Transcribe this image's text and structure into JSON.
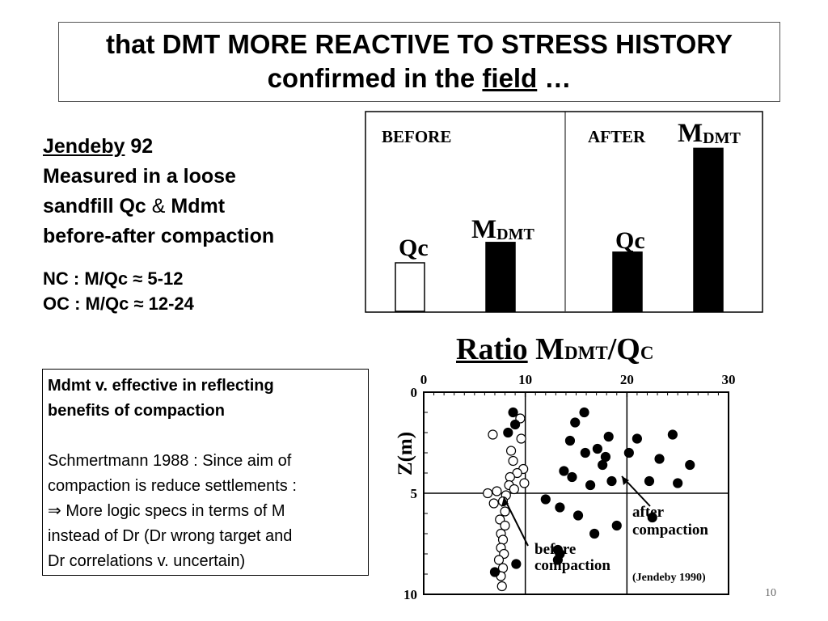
{
  "title": {
    "line1": "that DMT MORE REACTIVE TO STRESS HISTORY",
    "line2_pre": "confirmed in the ",
    "line2_link": "field",
    "line2_post": " …"
  },
  "left": {
    "author": "Jendeby",
    "year": " 92",
    "line2": "Measured in a loose",
    "line3_pre": "sandfill Qc ",
    "line3_amp": "&",
    "line3_post": " Mdmt",
    "line4": "before-after compaction",
    "nc": "NC : M/Qc ≈ 5-12",
    "oc": "OC : M/Qc ≈ 12-24"
  },
  "note": {
    "heading1": "Mdmt v. effective in reflecting",
    "heading2": "benefits of compaction",
    "line1": "Schmertmann 1988 : Since aim of",
    "line2": "compaction is reduce settlements :",
    "line3": "⇒ More logic specs in terms of M",
    "line4": "instead of Dr (Dr wrong target and",
    "line5": "Dr correlations v. uncertain)"
  },
  "bar_chart": {
    "before_label": "BEFORE",
    "after_label": "AFTER",
    "qc_label": "Qc",
    "m_main": "M",
    "m_sub": "DMT"
  },
  "ratio_heading": {
    "word": "Ratio",
    "m": "M",
    "m_sub": "DMT",
    "slash": "/Q",
    "q_sub": "C"
  },
  "scatter": {
    "ylabel": "Z(m)",
    "x_ticks": [
      "0",
      "10",
      "20",
      "30"
    ],
    "y_ticks": [
      "0",
      "5",
      "10"
    ],
    "before_label_1": "before",
    "before_label_2": "compaction",
    "after_label_1": "after",
    "after_label_2": "compaction",
    "credit": "(Jendeby 1990)"
  },
  "page_number": "10",
  "chart_data": [
    {
      "type": "bar",
      "categories": [
        "BEFORE Qc",
        "BEFORE MDMT",
        "AFTER Qc",
        "AFTER MDMT"
      ],
      "values": [
        1.0,
        1.42,
        1.22,
        3.36
      ],
      "fills": [
        "#ffffff",
        "#000000",
        "#000000",
        "#000000"
      ],
      "title": "",
      "xlabel": "",
      "ylabel": "",
      "ylim": [
        0,
        3.6
      ],
      "grid": false
    },
    {
      "type": "scatter",
      "title": "",
      "xlabel": "",
      "ylabel": "Z(m)",
      "xlim": [
        0,
        30
      ],
      "ylim": [
        10,
        0
      ],
      "x_ticks": [
        0,
        10,
        20,
        30
      ],
      "y_ticks": [
        0,
        5,
        10
      ],
      "grid": true,
      "series": [
        {
          "name": "before compaction",
          "marker": "open",
          "points": [
            [
              9.5,
              1.3
            ],
            [
              6.8,
              2.1
            ],
            [
              9.6,
              2.3
            ],
            [
              8.6,
              2.9
            ],
            [
              8.8,
              3.4
            ],
            [
              9.8,
              3.8
            ],
            [
              9.2,
              4.0
            ],
            [
              8.5,
              4.2
            ],
            [
              9.9,
              4.5
            ],
            [
              8.4,
              4.6
            ],
            [
              8.9,
              4.8
            ],
            [
              7.2,
              4.9
            ],
            [
              6.3,
              5.0
            ],
            [
              8.1,
              5.1
            ],
            [
              7.8,
              5.4
            ],
            [
              6.9,
              5.5
            ],
            [
              8.0,
              5.9
            ],
            [
              7.5,
              6.3
            ],
            [
              8.0,
              6.6
            ],
            [
              7.6,
              7.0
            ],
            [
              7.8,
              7.3
            ],
            [
              7.6,
              7.7
            ],
            [
              7.9,
              8.0
            ],
            [
              7.4,
              8.3
            ],
            [
              7.8,
              8.7
            ],
            [
              7.6,
              9.1
            ],
            [
              7.7,
              9.6
            ]
          ]
        },
        {
          "name": "after compaction",
          "marker": "filled",
          "points": [
            [
              8.8,
              1.0
            ],
            [
              15.8,
              1.0
            ],
            [
              9.0,
              1.6
            ],
            [
              14.9,
              1.5
            ],
            [
              8.3,
              2.0
            ],
            [
              14.4,
              2.4
            ],
            [
              18.2,
              2.2
            ],
            [
              21.0,
              2.3
            ],
            [
              24.5,
              2.1
            ],
            [
              15.9,
              3.0
            ],
            [
              17.1,
              2.8
            ],
            [
              17.9,
              3.2
            ],
            [
              20.2,
              3.0
            ],
            [
              17.6,
              3.6
            ],
            [
              23.2,
              3.3
            ],
            [
              26.2,
              3.6
            ],
            [
              13.8,
              3.9
            ],
            [
              14.6,
              4.2
            ],
            [
              16.4,
              4.6
            ],
            [
              18.5,
              4.4
            ],
            [
              22.2,
              4.4
            ],
            [
              25.0,
              4.5
            ],
            [
              12.0,
              5.3
            ],
            [
              13.4,
              5.7
            ],
            [
              15.2,
              6.1
            ],
            [
              19.0,
              6.6
            ],
            [
              22.5,
              6.2
            ],
            [
              16.8,
              7.0
            ],
            [
              13.2,
              7.8
            ],
            [
              13.4,
              8.0
            ],
            [
              13.2,
              8.3
            ],
            [
              9.1,
              8.5
            ],
            [
              7.0,
              8.9
            ]
          ]
        }
      ]
    }
  ]
}
